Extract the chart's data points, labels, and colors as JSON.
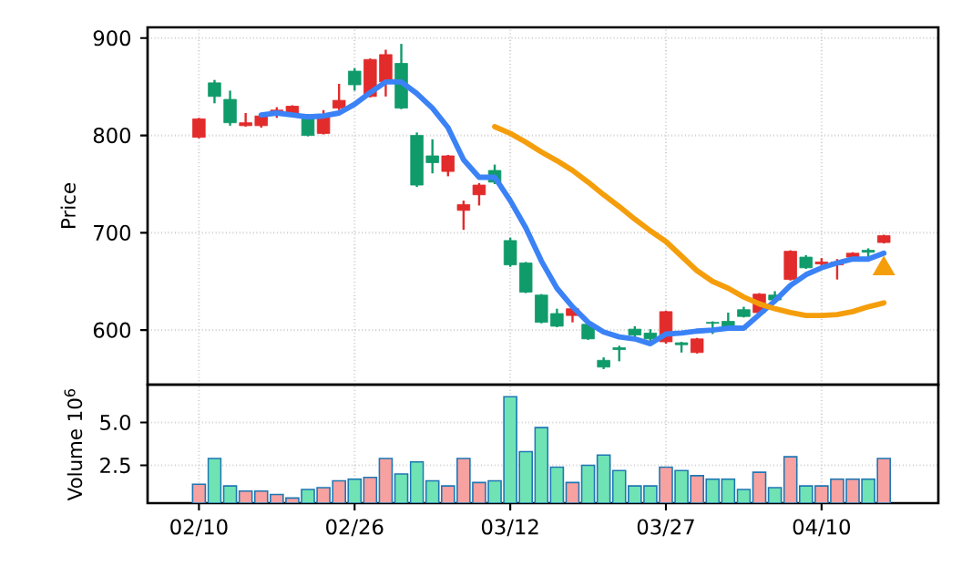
{
  "chart_data": [
    {
      "type": "candlestick",
      "ylabel": "Price",
      "categories": [
        null,
        null,
        null,
        null,
        null,
        null,
        null,
        null,
        null,
        null,
        null,
        null,
        null,
        null,
        null,
        null,
        null,
        null,
        null,
        null,
        null,
        null,
        null,
        null,
        null,
        null,
        null,
        null,
        null,
        null,
        null,
        null,
        null,
        null,
        null,
        null,
        null,
        null,
        null,
        null,
        null,
        null,
        null,
        null,
        null
      ],
      "ohlc": [
        [
          817,
          818,
          797,
          798
        ],
        [
          840,
          857,
          833,
          854
        ],
        [
          813,
          846,
          810,
          837
        ],
        [
          813,
          823,
          809,
          810
        ],
        [
          820,
          823,
          808,
          810
        ],
        [
          826,
          829,
          818,
          823
        ],
        [
          830,
          831,
          821,
          823
        ],
        [
          800,
          822,
          799,
          817
        ],
        [
          821,
          826,
          801,
          802
        ],
        [
          836,
          853,
          826,
          828
        ],
        [
          852,
          869,
          846,
          866
        ],
        [
          878,
          879,
          839,
          840
        ],
        [
          883,
          888,
          840,
          855
        ],
        [
          828,
          894,
          827,
          874
        ],
        [
          749,
          803,
          747,
          800
        ],
        [
          772,
          796,
          761,
          779
        ],
        [
          779,
          780,
          758,
          763
        ],
        [
          729,
          733,
          703,
          723
        ],
        [
          749,
          751,
          728,
          739
        ],
        [
          752,
          770,
          750,
          764
        ],
        [
          667,
          695,
          665,
          692
        ],
        [
          639,
          670,
          638,
          669
        ],
        [
          608,
          637,
          607,
          636
        ],
        [
          604,
          622,
          603,
          617
        ],
        [
          622,
          623,
          608,
          615
        ],
        [
          591,
          607,
          590,
          606
        ],
        [
          562,
          572,
          560,
          569
        ],
        [
          580,
          584,
          568,
          582
        ],
        [
          595,
          604,
          593,
          601
        ],
        [
          591,
          601,
          589,
          597
        ],
        [
          619,
          620,
          586,
          588
        ],
        [
          585,
          588,
          577,
          587
        ],
        [
          591,
          592,
          576,
          577
        ],
        [
          607,
          609,
          596,
          608
        ],
        [
          603,
          618,
          602,
          609
        ],
        [
          614,
          624,
          613,
          621
        ],
        [
          637,
          638,
          616,
          618
        ],
        [
          631,
          640,
          630,
          636
        ],
        [
          681,
          682,
          651,
          652
        ],
        [
          664,
          677,
          663,
          675
        ],
        [
          670,
          674,
          662,
          668
        ],
        [
          670,
          673,
          652,
          667
        ],
        [
          679,
          680,
          673,
          675
        ],
        [
          680,
          684,
          675,
          682
        ],
        [
          697,
          698,
          689,
          690
        ]
      ],
      "colors": [
        "#e22b2b",
        "#109b6b",
        "#109b6b",
        "#e22b2b",
        "#e22b2b",
        "#e22b2b",
        "#e22b2b",
        "#109b6b",
        "#e22b2b",
        "#e22b2b",
        "#109b6b",
        "#e22b2b",
        "#e22b2b",
        "#109b6b",
        "#109b6b",
        "#109b6b",
        "#e22b2b",
        "#e22b2b",
        "#e22b2b",
        "#109b6b",
        "#109b6b",
        "#109b6b",
        "#109b6b",
        "#109b6b",
        "#e22b2b",
        "#109b6b",
        "#109b6b",
        "#109b6b",
        "#109b6b",
        "#109b6b",
        "#e22b2b",
        "#109b6b",
        "#e22b2b",
        "#109b6b",
        "#109b6b",
        "#109b6b",
        "#e22b2b",
        "#109b6b",
        "#e22b2b",
        "#109b6b",
        "#e22b2b",
        "#e22b2b",
        "#e22b2b",
        "#109b6b",
        "#e22b2b"
      ],
      "series": [
        {
          "type": "line",
          "color": "#3b82f6",
          "values": [
            null,
            null,
            null,
            null,
            821,
            823,
            821,
            819,
            820,
            823,
            832,
            844,
            855,
            855,
            843,
            828,
            808,
            775,
            757,
            757,
            733,
            705,
            671,
            643,
            624,
            608,
            598,
            593,
            591,
            586,
            596,
            597,
            599,
            600,
            602,
            602,
            616,
            630,
            646,
            657,
            664,
            669,
            673,
            673,
            679
          ]
        },
        {
          "type": "line",
          "color": "#f59e0b",
          "values": [
            null,
            null,
            null,
            null,
            null,
            null,
            null,
            null,
            null,
            null,
            null,
            null,
            null,
            null,
            null,
            null,
            null,
            null,
            null,
            809,
            802,
            793,
            783,
            774,
            764,
            752,
            739,
            727,
            714,
            702,
            691,
            676,
            661,
            650,
            643,
            634,
            627,
            622,
            618,
            615,
            615,
            616,
            619,
            624,
            628
          ]
        },
        {
          "type": "scatter",
          "color": "#f59e0b",
          "marker": "triangle",
          "values": [
            null,
            null,
            null,
            null,
            null,
            null,
            null,
            null,
            null,
            null,
            null,
            null,
            null,
            null,
            null,
            null,
            null,
            null,
            null,
            null,
            null,
            null,
            null,
            null,
            null,
            null,
            null,
            null,
            null,
            null,
            null,
            null,
            null,
            null,
            null,
            null,
            null,
            null,
            null,
            null,
            null,
            null,
            null,
            null,
            663
          ]
        }
      ],
      "ylim": [
        544,
        911
      ],
      "yticks": [
        600,
        700,
        800,
        900
      ],
      "grid": true,
      "tick_labels": "y"
    },
    {
      "type": "bar",
      "ylabel": "Volume  10$^{6}$",
      "categories": [
        "02/10",
        null,
        null,
        null,
        null,
        null,
        null,
        null,
        null,
        null,
        "02/26",
        null,
        null,
        null,
        null,
        null,
        null,
        null,
        null,
        null,
        "03/12",
        null,
        null,
        null,
        null,
        null,
        null,
        null,
        null,
        null,
        "03/27",
        null,
        null,
        null,
        null,
        null,
        null,
        null,
        null,
        null,
        "04/10",
        null,
        null,
        null,
        null
      ],
      "values": [
        1.4,
        2.9,
        1.3,
        1.0,
        1.0,
        0.8,
        0.6,
        1.1,
        1.2,
        1.6,
        1.7,
        1.8,
        2.9,
        2.0,
        2.7,
        1.6,
        1.3,
        2.9,
        1.5,
        1.6,
        6.5,
        3.3,
        4.7,
        2.4,
        1.5,
        2.5,
        3.1,
        2.2,
        1.3,
        1.3,
        2.4,
        2.2,
        1.9,
        1.7,
        1.7,
        1.1,
        2.1,
        1.2,
        3.0,
        1.3,
        1.3,
        1.7,
        1.7,
        1.7,
        2.9
      ],
      "colors": [
        "#f7a1a1",
        "#6fe3b4",
        "#6fe3b4",
        "#f7a1a1",
        "#f7a1a1",
        "#f7a1a1",
        "#f7a1a1",
        "#6fe3b4",
        "#f7a1a1",
        "#f7a1a1",
        "#6fe3b4",
        "#f7a1a1",
        "#f7a1a1",
        "#6fe3b4",
        "#6fe3b4",
        "#6fe3b4",
        "#f7a1a1",
        "#f7a1a1",
        "#f7a1a1",
        "#6fe3b4",
        "#6fe3b4",
        "#6fe3b4",
        "#6fe3b4",
        "#6fe3b4",
        "#f7a1a1",
        "#6fe3b4",
        "#6fe3b4",
        "#6fe3b4",
        "#6fe3b4",
        "#6fe3b4",
        "#f7a1a1",
        "#6fe3b4",
        "#f7a1a1",
        "#6fe3b4",
        "#6fe3b4",
        "#6fe3b4",
        "#f7a1a1",
        "#6fe3b4",
        "#f7a1a1",
        "#6fe3b4",
        "#f7a1a1",
        "#f7a1a1",
        "#f7a1a1",
        "#6fe3b4",
        "#f7a1a1"
      ],
      "ylim": [
        0.3,
        7.2
      ],
      "yticks": [
        {
          "value": 2.5,
          "label": "2.5"
        },
        {
          "value": 5,
          "label": "5.0"
        }
      ],
      "grid": true
    }
  ]
}
